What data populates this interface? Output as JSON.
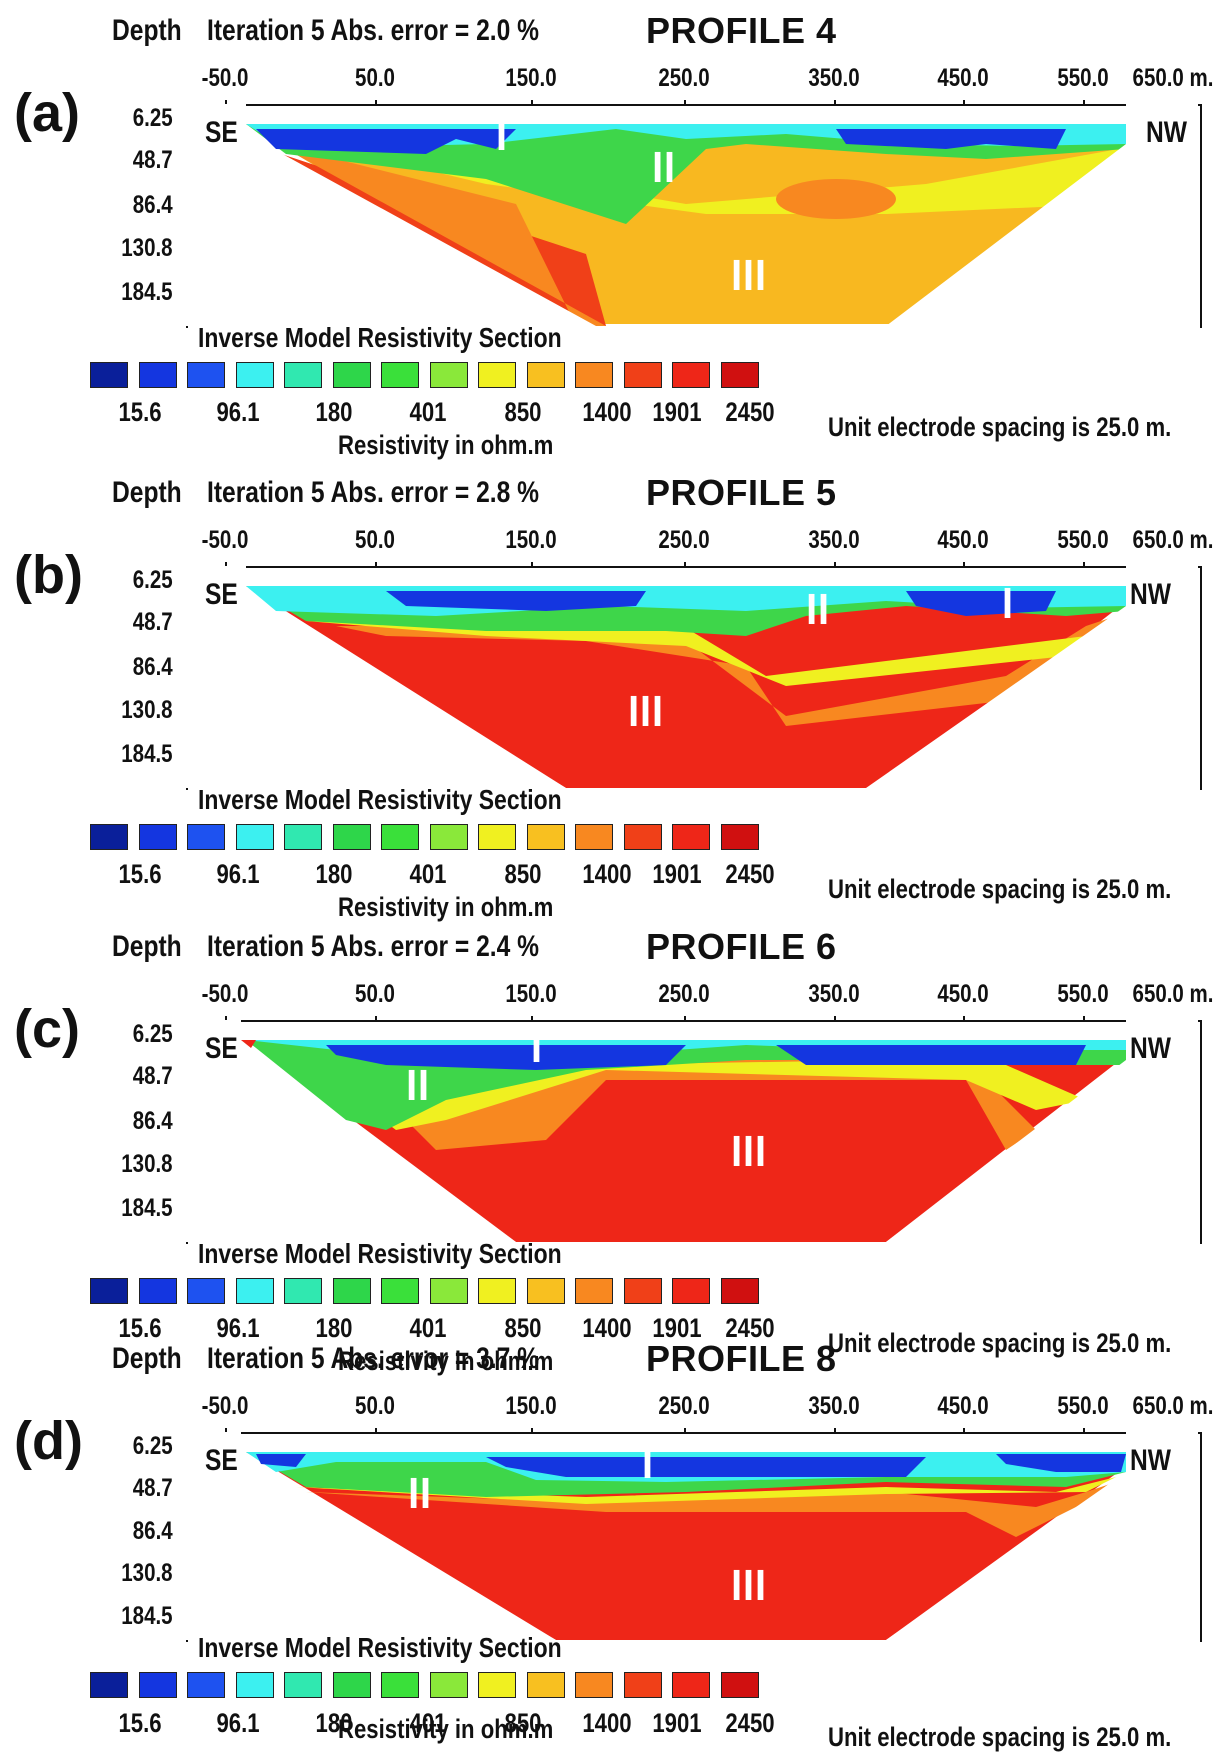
{
  "legend": {
    "title": "Inverse Model Resistivity Section",
    "units": "Resistivity in ohm.m",
    "values": [
      "15.6",
      "96.1",
      "180",
      "401",
      "850",
      "1400",
      "1901",
      "2450"
    ],
    "colors": [
      "#0a1f9a",
      "#1436e0",
      "#1e52f0",
      "#3cf0f0",
      "#30e8b0",
      "#2ed64a",
      "#3ae03a",
      "#8ae83a",
      "#f0f020",
      "#f8c020",
      "#f88820",
      "#f04018",
      "#ee2618",
      "#d01010"
    ]
  },
  "electrode_spacing": "Unit electrode spacing is 25.0 m.",
  "axis": {
    "depth_label": "Depth",
    "x_ticks": [
      "-50.0",
      "50.0",
      "150.0",
      "250.0",
      "350.0",
      "450.0",
      "550.0",
      "650.0 m."
    ],
    "depth_ticks": [
      "6.25",
      "48.7",
      "86.4",
      "130.8",
      "184.5"
    ],
    "left_dir": "SE",
    "right_dir": "NW"
  },
  "zones": {
    "one": "I",
    "two": "II",
    "three": "III"
  },
  "chart_data": [
    {
      "type": "heatmap",
      "panel_label": "(a)",
      "title": "PROFILE 4",
      "iteration": "Iteration 5 Abs. error = 2.0 %",
      "xlim": [
        -50,
        650
      ],
      "depth_ticks": [
        6.25,
        48.7,
        86.4,
        130.8,
        184.5
      ],
      "layers": [
        {
          "zone": "I",
          "resistivity_ohm_m": "15.6-96.1",
          "depth_m": [
            6.25,
            30
          ],
          "x_m": [
            -30,
            570
          ]
        },
        {
          "zone": "II",
          "resistivity_ohm_m": "180-401",
          "depth_m": [
            30,
            70
          ]
        },
        {
          "zone": "III",
          "resistivity_ohm_m": "850-1400",
          "depth_m": [
            70,
            200
          ]
        }
      ]
    },
    {
      "type": "heatmap",
      "panel_label": "(b)",
      "title": "PROFILE 5",
      "iteration": "Iteration 5 Abs. error = 2.8 %",
      "xlim": [
        -50,
        650
      ],
      "depth_ticks": [
        6.25,
        48.7,
        86.4,
        130.8,
        184.5
      ],
      "layers": [
        {
          "zone": "I",
          "resistivity_ohm_m": "15.6-96.1",
          "depth_m": [
            6.25,
            35
          ]
        },
        {
          "zone": "II",
          "resistivity_ohm_m": "180-401",
          "depth_m": [
            35,
            70
          ]
        },
        {
          "zone": "III",
          "resistivity_ohm_m": "1901-2450",
          "depth_m": [
            70,
            200
          ]
        }
      ]
    },
    {
      "type": "heatmap",
      "panel_label": "(c)",
      "title": "PROFILE 6",
      "iteration": "Iteration 5 Abs. error = 2.4 %",
      "xlim": [
        -50,
        650
      ],
      "depth_ticks": [
        6.25,
        48.7,
        86.4,
        130.8,
        184.5
      ],
      "layers": [
        {
          "zone": "I",
          "resistivity_ohm_m": "15.6-96.1",
          "depth_m": [
            6.25,
            30
          ]
        },
        {
          "zone": "II",
          "resistivity_ohm_m": "180-401",
          "depth_m": [
            30,
            80
          ]
        },
        {
          "zone": "III",
          "resistivity_ohm_m": "1901-2450",
          "depth_m": [
            60,
            200
          ]
        }
      ]
    },
    {
      "type": "heatmap",
      "panel_label": "(d)",
      "title": "PROFILE 8",
      "iteration": "Iteration 5 Abs. error = 3.7 %",
      "xlim": [
        -50,
        650
      ],
      "depth_ticks": [
        6.25,
        48.7,
        86.4,
        130.8,
        184.5
      ],
      "layers": [
        {
          "zone": "I",
          "resistivity_ohm_m": "15.6-96.1",
          "depth_m": [
            6.25,
            35
          ]
        },
        {
          "zone": "II",
          "resistivity_ohm_m": "180-401",
          "depth_m": [
            30,
            70
          ]
        },
        {
          "zone": "III",
          "resistivity_ohm_m": "1901-2450",
          "depth_m": [
            70,
            200
          ]
        }
      ]
    }
  ]
}
